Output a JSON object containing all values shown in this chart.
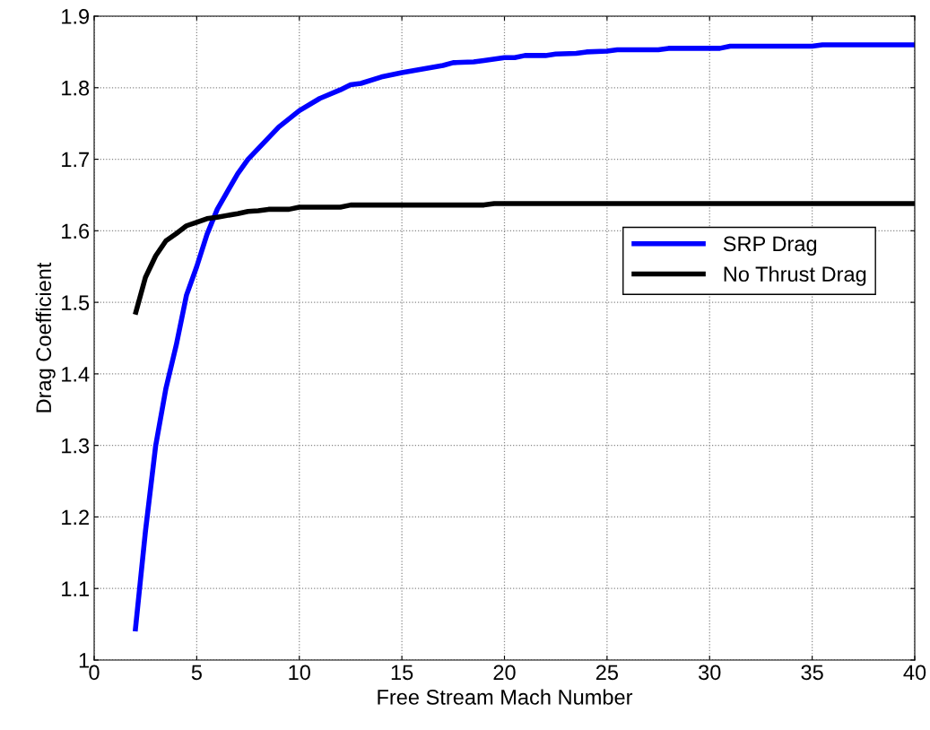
{
  "chart_data": {
    "type": "line",
    "xlabel": "Free Stream Mach Number",
    "ylabel": "Drag Coefficient",
    "xlim": [
      0,
      40
    ],
    "xticks": [
      0,
      5,
      10,
      15,
      20,
      25,
      30,
      35,
      40
    ],
    "ylim": [
      1,
      1.9
    ],
    "yticks": [
      1,
      1.1,
      1.2,
      1.3,
      1.4,
      1.5,
      1.6,
      1.7,
      1.8,
      1.9
    ],
    "grid": true,
    "legend": "right",
    "series": [
      {
        "name": "SRP Drag",
        "color": "#0000ff",
        "x": [
          2,
          2.5,
          3,
          3.5,
          4,
          4.5,
          5,
          5.5,
          6,
          6.5,
          7,
          7.5,
          8,
          9,
          10,
          11,
          12,
          12.5,
          13,
          14,
          15,
          16,
          17,
          17.5,
          18.5,
          19,
          20,
          20.5,
          21,
          22,
          22.5,
          23.5,
          24,
          25,
          25.5,
          27.5,
          28,
          30.5,
          31,
          35,
          35.5,
          40
        ],
        "values": [
          1.04,
          1.18,
          1.3,
          1.38,
          1.44,
          1.51,
          1.55,
          1.595,
          1.63,
          1.655,
          1.68,
          1.7,
          1.715,
          1.745,
          1.768,
          1.785,
          1.797,
          1.804,
          1.806,
          1.815,
          1.821,
          1.826,
          1.831,
          1.835,
          1.836,
          1.838,
          1.842,
          1.842,
          1.845,
          1.845,
          1.847,
          1.848,
          1.85,
          1.851,
          1.853,
          1.853,
          1.855,
          1.855,
          1.858,
          1.858,
          1.86,
          1.86
        ]
      },
      {
        "name": "No Thrust Drag",
        "color": "#000000",
        "x": [
          2,
          2.5,
          3,
          3.5,
          4,
          4.5,
          5,
          5.5,
          6,
          7,
          7.5,
          8,
          8.5,
          9.5,
          10,
          12,
          12.5,
          19,
          19.5,
          40
        ],
        "values": [
          1.483,
          1.535,
          1.565,
          1.586,
          1.596,
          1.607,
          1.612,
          1.617,
          1.619,
          1.624,
          1.627,
          1.628,
          1.63,
          1.63,
          1.633,
          1.633,
          1.636,
          1.636,
          1.638,
          1.638
        ]
      }
    ]
  }
}
